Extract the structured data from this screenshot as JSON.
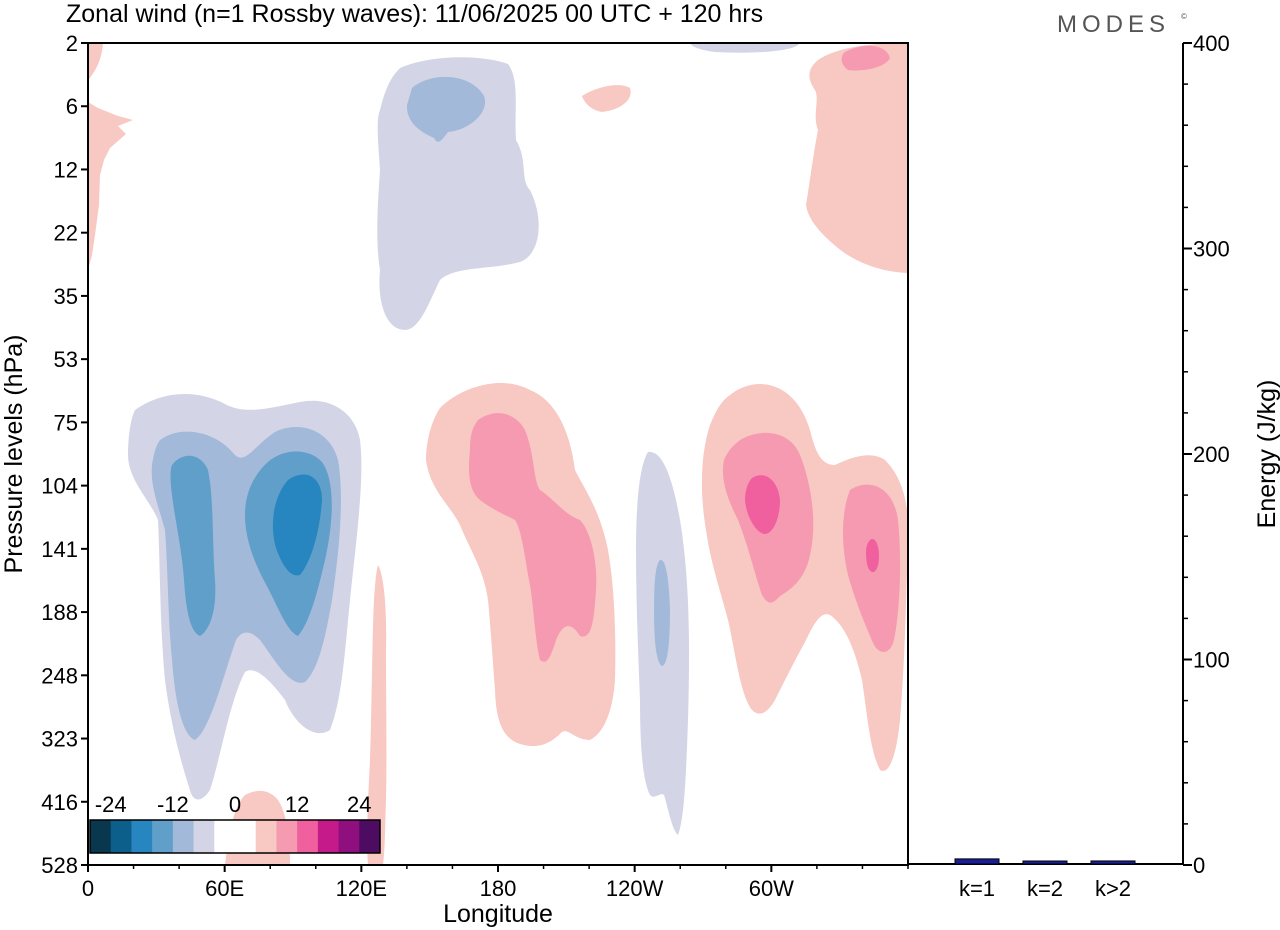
{
  "header": {
    "title": "Zonal wind (n=1 Rossby waves):  11/06/2025  00 UTC  + 120 hrs",
    "brand": "MODES",
    "brand_mark": "©"
  },
  "chart_data": [
    {
      "type": "heatmap",
      "xlabel": "Longitude",
      "ylabel": "Pressure levels (hPa)",
      "x_ticks": [
        "0",
        "60E",
        "120E",
        "180",
        "120W",
        "60W"
      ],
      "x_tick_values": [
        0,
        60,
        120,
        180,
        240,
        300
      ],
      "xlim": [
        0,
        360
      ],
      "y_ticks": [
        "2",
        "6",
        "12",
        "22",
        "35",
        "53",
        "75",
        "104",
        "141",
        "188",
        "248",
        "323",
        "416",
        "528"
      ],
      "y_scale": "categorical-levels, top to bottom",
      "colorbar": {
        "labels": [
          "-24",
          "-12",
          "0",
          "12",
          "24"
        ],
        "levels": [
          -30,
          -25,
          -20,
          -15,
          -10,
          -5,
          0,
          5,
          10,
          15,
          20,
          25,
          30
        ],
        "colors": [
          "#08374e",
          "#0b5f8a",
          "#2786bf",
          "#609fca",
          "#a2b9d9",
          "#d3d5e6",
          "#ffffff",
          "#ffffff",
          "#f8c8c2",
          "#f59ab1",
          "#f0609f",
          "#c51b8a",
          "#8f0f7e",
          "#4d0b61"
        ],
        "placement": "bottom-left"
      },
      "contour_regions": [
        {
          "name": "upper-strat easterly",
          "lon_range": [
            129,
            198
          ],
          "levels": [
            "2",
            "35"
          ],
          "value_min": -12,
          "shade": "negative"
        },
        {
          "name": "upper-strat westerly",
          "lon_range": [
            317,
            360
          ],
          "levels": [
            "2",
            "22"
          ],
          "value_max": 12,
          "shade": "positive"
        },
        {
          "name": "tropospheric easterly",
          "lon_range": [
            17,
            120
          ],
          "levels": [
            "75",
            "416"
          ],
          "value_min": -19,
          "shade": "negative"
        },
        {
          "name": "tropospheric westerly A",
          "lon_range": [
            149,
            231
          ],
          "levels": [
            "53",
            "323"
          ],
          "value_max": 12,
          "shade": "positive"
        },
        {
          "name": "tropospheric easterly B",
          "lon_range": [
            241,
            264
          ],
          "levels": [
            "104",
            "416"
          ],
          "value_min": -9,
          "shade": "negative"
        },
        {
          "name": "tropospheric westerly B",
          "lon_range": [
            270,
            360
          ],
          "levels": [
            "53",
            "416"
          ],
          "value_max": 14,
          "shade": "positive"
        }
      ]
    },
    {
      "type": "bar",
      "categories": [
        "k=1",
        "k=2",
        "k>2"
      ],
      "values": [
        2,
        0.5,
        1
      ],
      "ylabel": "Energy (J/kg)",
      "y_ticks": [
        "0",
        "100",
        "200",
        "300",
        "400"
      ],
      "ylim": [
        0,
        400
      ],
      "bar_color": "#1a1f99"
    }
  ]
}
